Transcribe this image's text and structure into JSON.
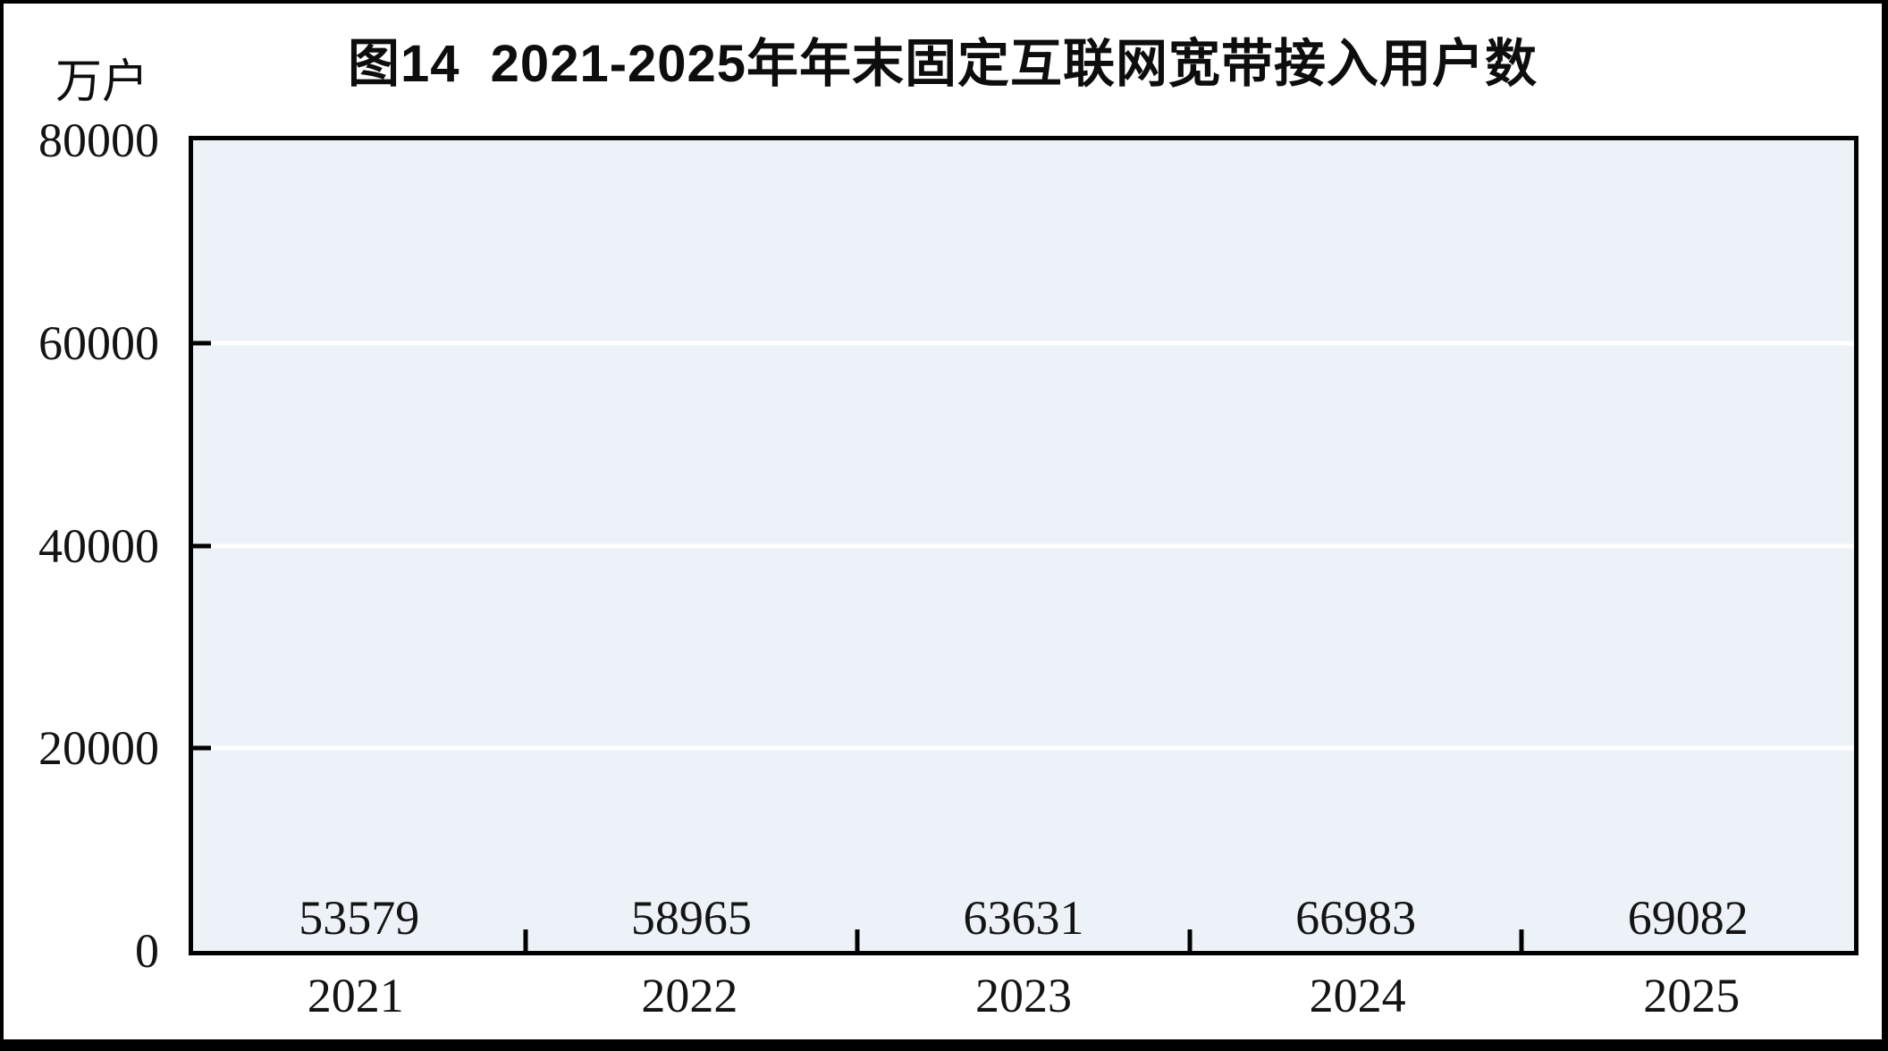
{
  "figure": {
    "title": "图14  2021-2025年年末固定互联网宽带接入用户数",
    "unit_label": "万户"
  },
  "chart_data": {
    "type": "bar",
    "title": "图14  2021-2025年年末固定互联网宽带接入用户数",
    "ylabel_unit": "万户",
    "categories": [
      "2021",
      "2022",
      "2023",
      "2024",
      "2025"
    ],
    "values": [
      53579,
      58965,
      63631,
      66983,
      69082
    ],
    "ylim": [
      0,
      80000
    ],
    "ytick_step": 20000,
    "yticks": [
      "80000",
      "60000",
      "40000",
      "20000",
      "0"
    ],
    "grid": "horizontal white gridlines at 20000, 40000, 60000",
    "legend": "none",
    "bar_color": "#FC807E",
    "plot_background": "#ECF2F7",
    "value_labels_position": "above bars"
  }
}
